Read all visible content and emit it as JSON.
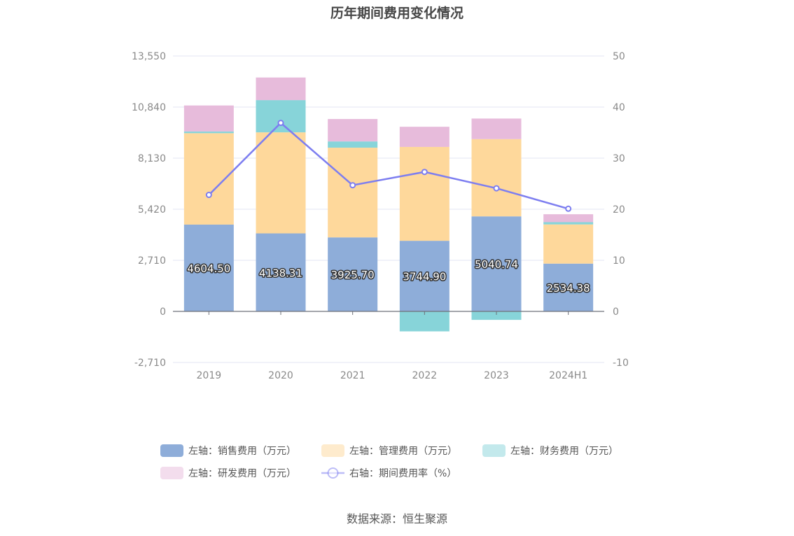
{
  "chart_data": {
    "type": "bar",
    "title": "历年期间费用变化情况",
    "categories": [
      "2019",
      "2020",
      "2021",
      "2022",
      "2023",
      "2024H1"
    ],
    "stacked": true,
    "left_axis": {
      "ylim": [
        -2710,
        13550
      ],
      "ticks": [
        "13,550",
        "10,840",
        "8,130",
        "5,420",
        "2,710",
        "0",
        "-2,710"
      ],
      "tick_values": [
        13550,
        10840,
        8130,
        5420,
        2710,
        0,
        -2710
      ]
    },
    "right_axis": {
      "ylim": [
        -10,
        50
      ],
      "ticks": [
        "50",
        "40",
        "30",
        "20",
        "10",
        "0",
        "-10"
      ],
      "tick_values": [
        50,
        40,
        30,
        20,
        10,
        0,
        -10
      ]
    },
    "series": [
      {
        "name": "左轴：销售费用（万元）",
        "type": "bar",
        "axis": "left",
        "color": "#8eadd9",
        "values": [
          4604.5,
          4138.31,
          3925.7,
          3744.9,
          5040.74,
          2534.38
        ],
        "labels": [
          "4604.50",
          "4138.31",
          "3925.70",
          "3744.90",
          "5040.74",
          "2534.38"
        ]
      },
      {
        "name": "左轴：管理费用（万元）",
        "type": "bar",
        "axis": "left",
        "color": "#fed89b",
        "values": [
          4850,
          5360,
          4760,
          4980,
          4100,
          2080
        ]
      },
      {
        "name": "左轴：财务费用（万元）",
        "type": "bar",
        "axis": "left",
        "color": "#87d4d9",
        "values": [
          90,
          1710,
          330,
          -1060,
          -450,
          120
        ]
      },
      {
        "name": "左轴：研发费用（万元）",
        "type": "bar",
        "axis": "left",
        "color": "#e7bbdb",
        "values": [
          1380,
          1200,
          1190,
          1070,
          1090,
          420
        ]
      },
      {
        "name": "右轴：期间费用率（%）",
        "type": "line",
        "axis": "right",
        "color": "#7d7ef0",
        "values": [
          22.8,
          36.9,
          24.7,
          27.3,
          24.1,
          20.1
        ]
      }
    ],
    "legend_position": "bottom",
    "grid": true
  },
  "source_text": "数据来源：恒生聚源"
}
